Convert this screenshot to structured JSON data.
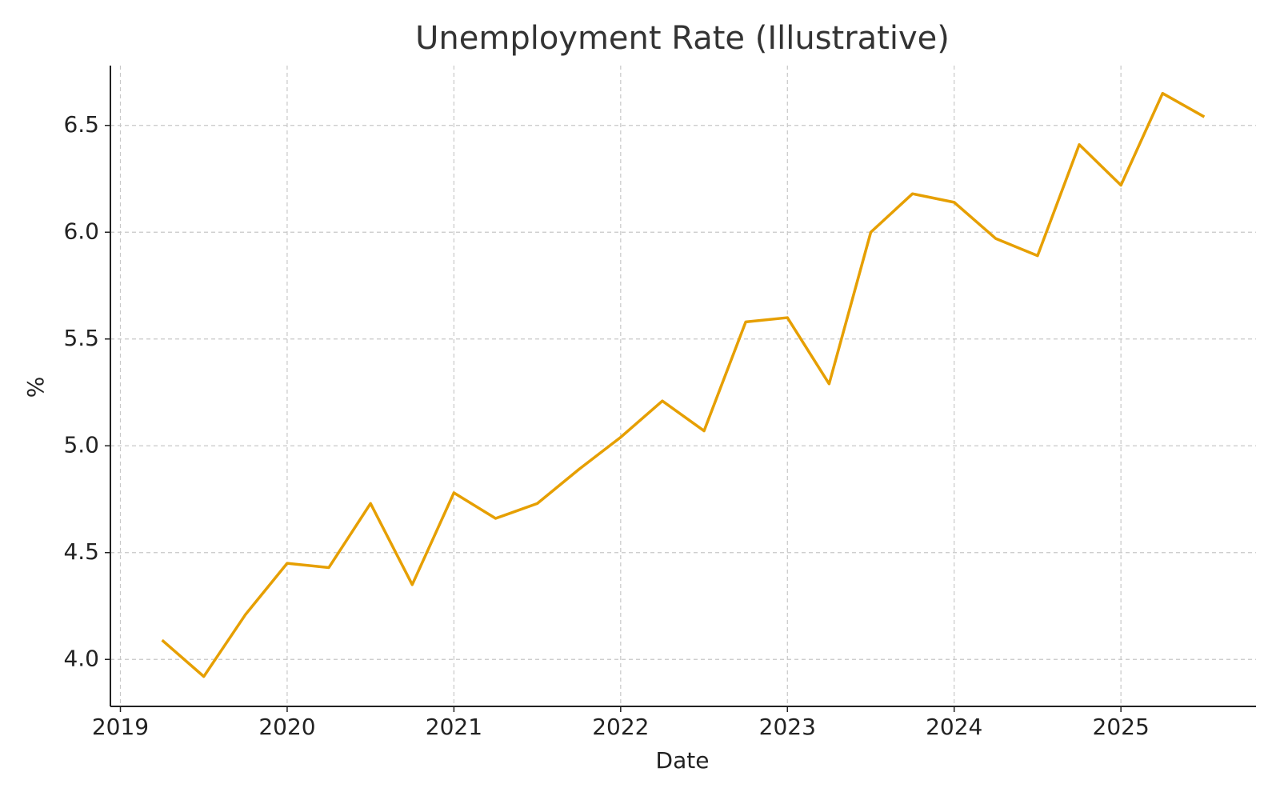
{
  "chart_data": {
    "type": "line",
    "title": "Unemployment Rate (Illustrative)",
    "xlabel": "Date",
    "ylabel": "%",
    "x": [
      2019.25,
      2019.5,
      2019.75,
      2020.0,
      2020.25,
      2020.5,
      2020.75,
      2021.0,
      2021.25,
      2021.5,
      2021.75,
      2022.0,
      2022.25,
      2022.5,
      2022.75,
      2023.0,
      2023.25,
      2023.5,
      2023.75,
      2024.0,
      2024.25,
      2024.5,
      2024.75,
      2025.0,
      2025.25,
      2025.5
    ],
    "series": [
      {
        "name": "Unemployment Rate",
        "color": "#e69f00",
        "values": [
          4.09,
          3.92,
          4.21,
          4.45,
          4.43,
          4.73,
          4.35,
          4.78,
          4.66,
          4.73,
          4.89,
          5.04,
          5.21,
          5.07,
          5.58,
          5.6,
          5.29,
          6.0,
          6.18,
          6.14,
          5.97,
          5.89,
          6.41,
          6.22,
          6.65,
          6.54
        ]
      }
    ],
    "xlim": [
      2018.94,
      2025.81
    ],
    "xticks": [
      2019,
      2020,
      2021,
      2022,
      2023,
      2024,
      2025
    ],
    "ylim": [
      3.78,
      6.78
    ],
    "yticks": [
      {
        "value": 4.0,
        "label": "4.0"
      },
      4.5,
      {
        "value": 5.0,
        "label": "5.0"
      },
      5.5,
      {
        "value": 6.0,
        "label": "6.0"
      },
      6.5
    ],
    "grid": true
  }
}
